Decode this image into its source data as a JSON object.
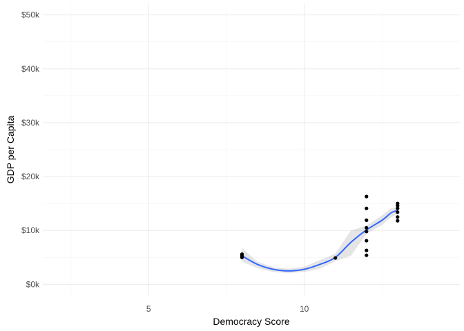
{
  "chart_data": {
    "type": "scatter",
    "title": "",
    "xlabel": "Democracy Score",
    "ylabel": "GDP per Capita",
    "xlim": [
      1.6,
      15.0
    ],
    "ylim": [
      -2000,
      52000
    ],
    "x_ticks": [
      5,
      10
    ],
    "x_tick_labels": [
      "5",
      "10"
    ],
    "x_minor_ticks": [
      2.5,
      7.5,
      12.5
    ],
    "y_ticks": [
      0,
      10000,
      20000,
      30000,
      40000,
      50000
    ],
    "y_tick_labels": [
      "$0k",
      "$10k",
      "$20k",
      "$30k",
      "$40k",
      "$50k"
    ],
    "y_minor_ticks": [
      5000,
      15000,
      25000,
      35000,
      45000
    ],
    "grid": true,
    "legend": "none",
    "colors": {
      "points": "#000000",
      "smooth_line": "#3366ff",
      "confidence_band": "#999999"
    },
    "points": [
      {
        "x": 8,
        "y": 5000
      },
      {
        "x": 8,
        "y": 5300
      },
      {
        "x": 8,
        "y": 5600
      },
      {
        "x": 11,
        "y": 4900
      },
      {
        "x": 12,
        "y": 16300
      },
      {
        "x": 12,
        "y": 14100
      },
      {
        "x": 12,
        "y": 11900
      },
      {
        "x": 12,
        "y": 10500
      },
      {
        "x": 12,
        "y": 9800
      },
      {
        "x": 12,
        "y": 8100
      },
      {
        "x": 12,
        "y": 6300
      },
      {
        "x": 12,
        "y": 5400
      },
      {
        "x": 13,
        "y": 15000
      },
      {
        "x": 13,
        "y": 14600
      },
      {
        "x": 13,
        "y": 14100
      },
      {
        "x": 13,
        "y": 13400
      },
      {
        "x": 13,
        "y": 12500
      },
      {
        "x": 13,
        "y": 11800
      }
    ],
    "smooth": {
      "x": [
        8.0,
        8.5,
        9.0,
        9.5,
        10.0,
        10.5,
        11.0,
        11.5,
        12.0,
        12.5,
        12.8,
        13.0
      ],
      "y": [
        5300,
        3700,
        2800,
        2500,
        2800,
        3700,
        5000,
        7800,
        10100,
        11900,
        13300,
        13700
      ],
      "lower": [
        4200,
        3000,
        2300,
        2100,
        2300,
        2900,
        4300,
        5300,
        9400,
        11000,
        12500,
        13000
      ],
      "upper": [
        6700,
        4200,
        3200,
        2900,
        3300,
        4500,
        5700,
        10000,
        10900,
        12800,
        14100,
        14400
      ]
    }
  }
}
